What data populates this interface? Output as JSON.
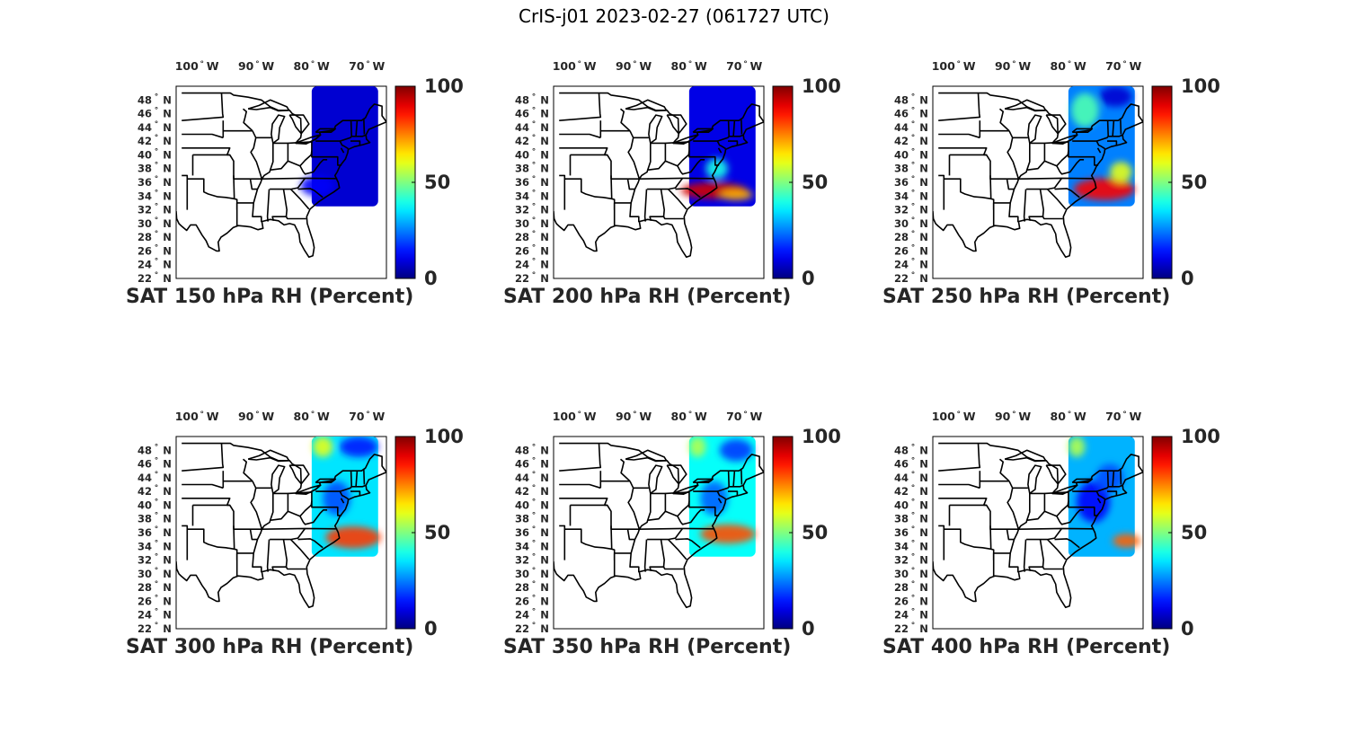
{
  "figure": {
    "title": "CrIS-j01 2023-02-27 (061727 UTC)"
  },
  "chart_data": {
    "type": "map-scatter",
    "region": "Eastern United States",
    "lon_range": [
      -105,
      -67
    ],
    "lat_range": [
      22,
      50
    ],
    "lon_ticks": [
      {
        "value": -100,
        "label": "100",
        "hemisphere": "W"
      },
      {
        "value": -90,
        "label": "90",
        "hemisphere": "W"
      },
      {
        "value": -80,
        "label": "80",
        "hemisphere": "W"
      },
      {
        "value": -70,
        "label": "70",
        "hemisphere": "W"
      }
    ],
    "lat_ticks": [
      {
        "value": 48,
        "label": "48",
        "hemisphere": "N"
      },
      {
        "value": 46,
        "label": "46",
        "hemisphere": "N"
      },
      {
        "value": 44,
        "label": "44",
        "hemisphere": "N"
      },
      {
        "value": 42,
        "label": "42",
        "hemisphere": "N"
      },
      {
        "value": 40,
        "label": "40",
        "hemisphere": "N"
      },
      {
        "value": 38,
        "label": "38",
        "hemisphere": "N"
      },
      {
        "value": 36,
        "label": "36",
        "hemisphere": "N"
      },
      {
        "value": 34,
        "label": "34",
        "hemisphere": "N"
      },
      {
        "value": 32,
        "label": "32",
        "hemisphere": "N"
      },
      {
        "value": 30,
        "label": "30",
        "hemisphere": "N"
      },
      {
        "value": 28,
        "label": "28",
        "hemisphere": "N"
      },
      {
        "value": 26,
        "label": "26",
        "hemisphere": "N"
      },
      {
        "value": 24,
        "label": "24",
        "hemisphere": "N"
      },
      {
        "value": 22,
        "label": "22",
        "hemisphere": "N"
      }
    ],
    "colorbar": {
      "colormap": "jet",
      "range": [
        0,
        100
      ],
      "ticks": [
        {
          "value": 0,
          "label": "0"
        },
        {
          "value": 50,
          "label": "50"
        },
        {
          "value": 100,
          "label": "100"
        }
      ]
    },
    "swath": {
      "lon_range": [
        -80.5,
        -68.5
      ],
      "lat_range": [
        32.5,
        50
      ]
    },
    "panels": [
      {
        "title": "SAT 150 hPa RH (Percent)",
        "pressure_hpa": 150,
        "background_rh": 8,
        "features": [
          {
            "lon": -79.5,
            "lat": 35.5,
            "rx": 3,
            "ry": 1.5,
            "rh": 12
          }
        ]
      },
      {
        "title": "SAT 200 hPa RH (Percent)",
        "pressure_hpa": 200,
        "background_rh": 10,
        "features": [
          {
            "lon": -76,
            "lat": 34.8,
            "rx": 6,
            "ry": 1.2,
            "rh": 92
          },
          {
            "lon": -72,
            "lat": 34.2,
            "rx": 3,
            "ry": 0.8,
            "rh": 70
          },
          {
            "lon": -75.5,
            "lat": 38,
            "rx": 2,
            "ry": 1.5,
            "rh": 40
          }
        ]
      },
      {
        "title": "SAT 250 hPa RH (Percent)",
        "pressure_hpa": 250,
        "background_rh": 25,
        "features": [
          {
            "lon": -74,
            "lat": 35,
            "rx": 5.5,
            "ry": 1.6,
            "rh": 88
          },
          {
            "lon": -77.5,
            "lat": 46.5,
            "rx": 2.5,
            "ry": 2.5,
            "rh": 45
          },
          {
            "lon": -71,
            "lat": 37.5,
            "rx": 2,
            "ry": 1.5,
            "rh": 60
          },
          {
            "lon": -72,
            "lat": 48.5,
            "rx": 3,
            "ry": 1.5,
            "rh": 8
          }
        ]
      },
      {
        "title": "SAT 300 hPa RH (Percent)",
        "pressure_hpa": 300,
        "background_rh": 35,
        "features": [
          {
            "lon": -73,
            "lat": 35.3,
            "rx": 5,
            "ry": 1.6,
            "rh": 82
          },
          {
            "lon": -78.5,
            "lat": 48.5,
            "rx": 1.8,
            "ry": 1.5,
            "rh": 60
          },
          {
            "lon": -72,
            "lat": 48.5,
            "rx": 3.5,
            "ry": 1.5,
            "rh": 15
          },
          {
            "lon": -76,
            "lat": 41,
            "rx": 2.5,
            "ry": 2.5,
            "rh": 20
          }
        ]
      },
      {
        "title": "SAT 350 hPa RH (Percent)",
        "pressure_hpa": 350,
        "background_rh": 38,
        "features": [
          {
            "lon": -73.5,
            "lat": 35.8,
            "rx": 5,
            "ry": 1.4,
            "rh": 80
          },
          {
            "lon": -79,
            "lat": 48.5,
            "rx": 1.5,
            "ry": 1.5,
            "rh": 55
          },
          {
            "lon": -72,
            "lat": 48,
            "rx": 3,
            "ry": 1.6,
            "rh": 18
          },
          {
            "lon": -76,
            "lat": 41,
            "rx": 2.5,
            "ry": 2.5,
            "rh": 22
          }
        ]
      },
      {
        "title": "SAT 400 hPa RH (Percent)",
        "pressure_hpa": 400,
        "background_rh": 30,
        "features": [
          {
            "lon": -70,
            "lat": 34.8,
            "rx": 2.5,
            "ry": 1,
            "rh": 78
          },
          {
            "lon": -79,
            "lat": 48.5,
            "rx": 1.5,
            "ry": 1.5,
            "rh": 55
          },
          {
            "lon": -76,
            "lat": 40.5,
            "rx": 3,
            "ry": 3,
            "rh": 12
          },
          {
            "lon": -73,
            "lat": 44,
            "rx": 2.5,
            "ry": 2,
            "rh": 20
          }
        ]
      }
    ]
  }
}
